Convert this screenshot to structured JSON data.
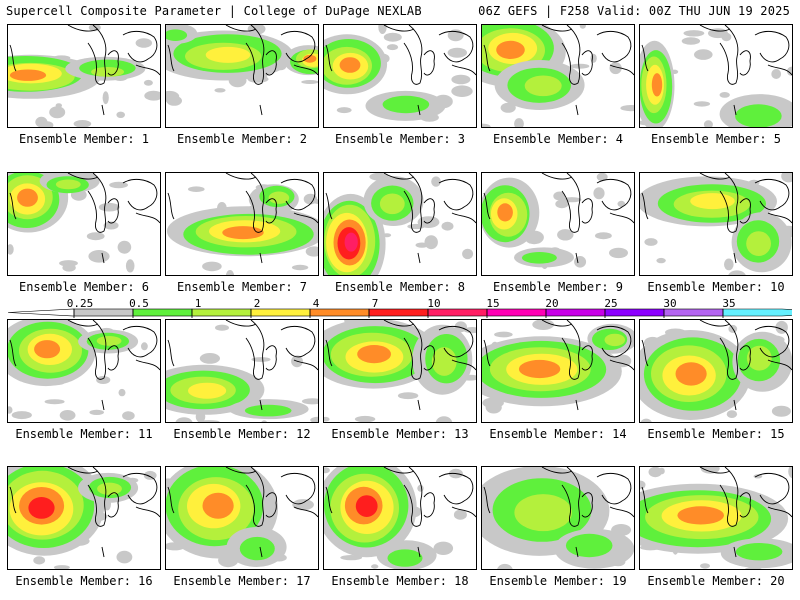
{
  "header": {
    "left": "Supercell Composite Parameter | College of DuPage NEXLAB",
    "right": "06Z GEFS | F258 Valid: 00Z THU JUN 19 2025"
  },
  "members": [
    {
      "label": "Ensemble Member: 1"
    },
    {
      "label": "Ensemble Member: 2"
    },
    {
      "label": "Ensemble Member: 3"
    },
    {
      "label": "Ensemble Member: 4"
    },
    {
      "label": "Ensemble Member: 5"
    },
    {
      "label": "Ensemble Member: 6"
    },
    {
      "label": "Ensemble Member: 7"
    },
    {
      "label": "Ensemble Member: 8"
    },
    {
      "label": "Ensemble Member: 9"
    },
    {
      "label": "Ensemble Member: 10"
    },
    {
      "label": "Ensemble Member: 11"
    },
    {
      "label": "Ensemble Member: 12"
    },
    {
      "label": "Ensemble Member: 13"
    },
    {
      "label": "Ensemble Member: 14"
    },
    {
      "label": "Ensemble Member: 15"
    },
    {
      "label": "Ensemble Member: 16"
    },
    {
      "label": "Ensemble Member: 17"
    },
    {
      "label": "Ensemble Member: 18"
    },
    {
      "label": "Ensemble Member: 19"
    },
    {
      "label": "Ensemble Member: 20"
    }
  ],
  "legend": {
    "ticks": [
      "0.25",
      "0.5",
      "1",
      "2",
      "4",
      "7",
      "10",
      "15",
      "20",
      "25",
      "30",
      "35"
    ],
    "colors": [
      "#c8c8c8",
      "#5ff03c",
      "#b4f03c",
      "#fff03c",
      "#ff8c28",
      "#ff1e1e",
      "#ff1e64",
      "#ff00b4",
      "#c800e6",
      "#8c00ff",
      "#b464f0",
      "#64f0ff"
    ]
  }
}
